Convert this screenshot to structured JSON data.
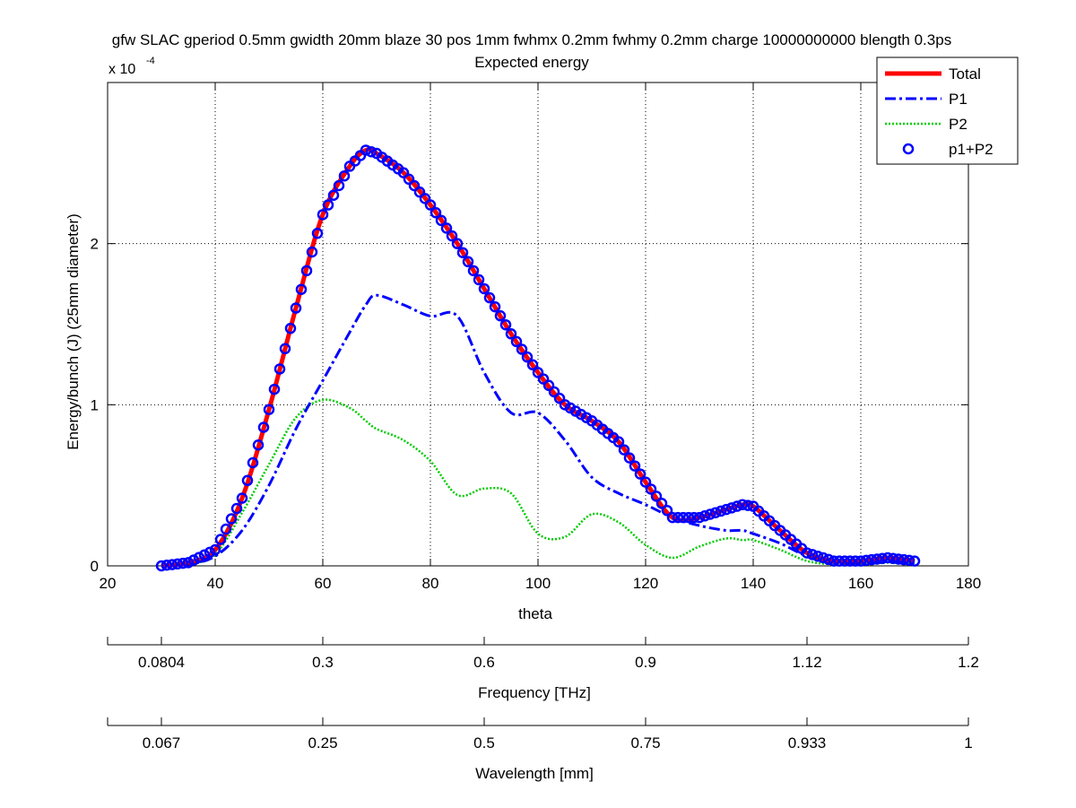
{
  "figure": {
    "title_line1": "gfw SLAC gperiod 0.5mm gwidth 20mm blaze 30 pos 1mm fwhmx 0.2mm fwhmy 0.2mm charge 10000000000 blength 0.3ps",
    "title_line2": "Expected energy",
    "exponent_base": "x 10",
    "exponent_power": "-4"
  },
  "chart_data": [
    {
      "type": "line",
      "title": "Expected energy",
      "xlabel": "theta",
      "ylabel": "Energy/bunch (J) (25mm diameter)",
      "xlim": [
        20,
        180
      ],
      "ylim": [
        0,
        3
      ],
      "y_scale_note": "x 10^-4",
      "x_ticks": [
        20,
        40,
        60,
        80,
        100,
        120,
        140,
        160,
        180
      ],
      "y_ticks": [
        0,
        1,
        2
      ],
      "grid": "dotted",
      "legend_position": "top-right",
      "x": [
        30,
        35,
        40,
        45,
        50,
        55,
        60,
        65,
        68,
        70,
        75,
        80,
        85,
        90,
        95,
        100,
        105,
        110,
        115,
        120,
        125,
        130,
        135,
        138,
        140,
        145,
        150,
        155,
        160,
        165,
        170
      ],
      "series": [
        {
          "name": "Total",
          "color": "#ff0000",
          "style": "solid",
          "values": [
            0.0,
            0.02,
            0.1,
            0.42,
            0.97,
            1.6,
            2.18,
            2.48,
            2.58,
            2.56,
            2.44,
            2.24,
            2.0,
            1.72,
            1.44,
            1.2,
            1.0,
            0.9,
            0.77,
            0.52,
            0.3,
            0.3,
            0.35,
            0.38,
            0.37,
            0.22,
            0.08,
            0.03,
            0.03,
            0.05,
            0.03
          ]
        },
        {
          "name": "P1",
          "color": "#0000ff",
          "style": "dash-dot",
          "values": [
            0.0,
            0.01,
            0.06,
            0.22,
            0.5,
            0.85,
            1.15,
            1.45,
            1.62,
            1.68,
            1.62,
            1.55,
            1.55,
            1.2,
            0.95,
            0.95,
            0.78,
            0.55,
            0.45,
            0.38,
            0.3,
            0.25,
            0.22,
            0.22,
            0.2,
            0.14,
            0.06,
            0.02,
            0.02,
            0.03,
            0.02
          ]
        },
        {
          "name": "P2",
          "color": "#00cc00",
          "style": "dotted",
          "values": [
            0.0,
            0.01,
            0.07,
            0.33,
            0.63,
            0.92,
            1.03,
            0.98,
            0.9,
            0.85,
            0.78,
            0.65,
            0.44,
            0.48,
            0.45,
            0.2,
            0.18,
            0.32,
            0.27,
            0.13,
            0.05,
            0.12,
            0.17,
            0.16,
            0.16,
            0.1,
            0.03,
            0.01,
            0.01,
            0.02,
            0.01
          ]
        },
        {
          "name": "p1+P2",
          "color": "#0000ff",
          "style": "circle-markers",
          "values": [
            0.0,
            0.02,
            0.1,
            0.42,
            0.97,
            1.6,
            2.18,
            2.48,
            2.58,
            2.56,
            2.44,
            2.24,
            2.0,
            1.72,
            1.44,
            1.2,
            1.0,
            0.9,
            0.77,
            0.52,
            0.3,
            0.3,
            0.35,
            0.38,
            0.37,
            0.22,
            0.08,
            0.03,
            0.03,
            0.05,
            0.03
          ]
        }
      ]
    },
    {
      "type": "axis",
      "xlabel": "Frequency [THz]",
      "tick_labels": [
        "0.0804",
        "0.3",
        "0.6",
        "0.9",
        "1.12",
        "1.2"
      ]
    },
    {
      "type": "axis",
      "xlabel": "Wavelength [mm]",
      "tick_labels": [
        "0.067",
        "0.25",
        "0.5",
        "0.75",
        "0.933",
        "1"
      ]
    }
  ]
}
